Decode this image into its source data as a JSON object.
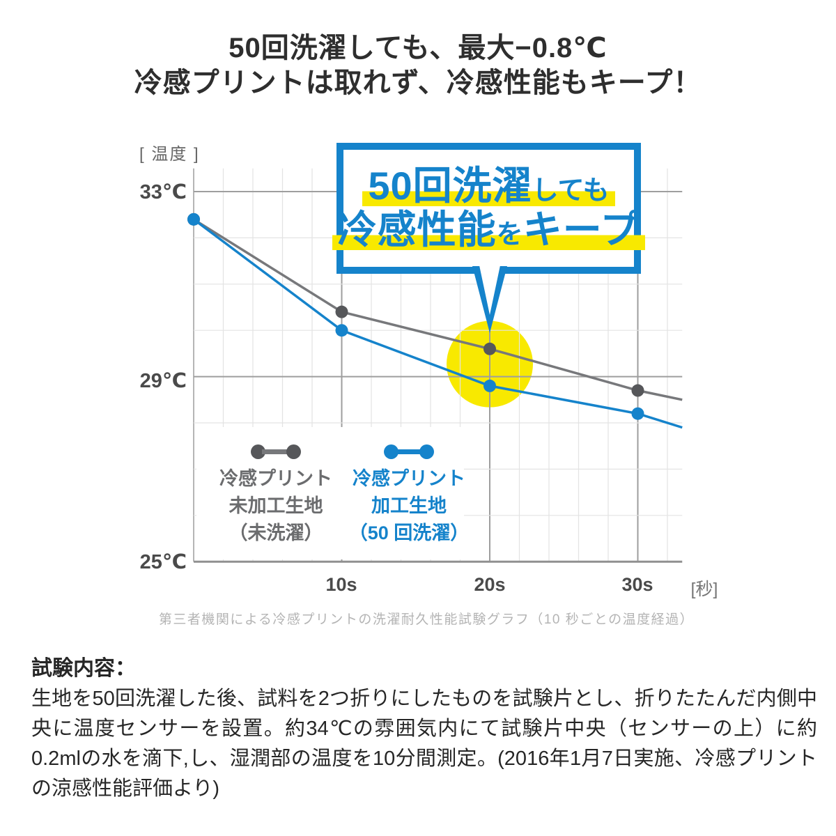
{
  "title": {
    "line1": "50回洗濯しても、最大−0.8℃",
    "line2": "冷感プリントは取れず、冷感性能もキープ！"
  },
  "callout": {
    "line1_big": "50回洗濯",
    "line1_small": "しても",
    "line2_big1": "冷感性能",
    "line2_small": "を",
    "line2_big2": "キープ",
    "border_color": "#1583cb",
    "highlight_color": "#f8e900"
  },
  "chart_data": {
    "type": "line",
    "x_axis_tag": "[秒]",
    "y_axis_tag": "[ 温度 ]",
    "x": [
      0,
      10,
      20,
      30,
      33
    ],
    "markers_x": [
      0,
      10,
      20,
      30
    ],
    "series": [
      {
        "name": "冷感プリント未加工生地（未洗濯）",
        "color": "#77787b",
        "marker_color": "#56575a",
        "values": [
          32.4,
          30.4,
          29.6,
          28.7,
          28.5
        ]
      },
      {
        "name": "冷感プリント加工生地（50回洗濯）",
        "color": "#1583cb",
        "marker_color": "#1583cb",
        "values": [
          32.4,
          30.0,
          28.8,
          28.2,
          27.9
        ]
      }
    ],
    "ylim": [
      25,
      33.5
    ],
    "yticks": [
      {
        "temp": 33,
        "label": "33℃"
      },
      {
        "temp": 29,
        "label": "29℃"
      },
      {
        "temp": 25,
        "label": "25℃"
      }
    ],
    "xticks": [
      {
        "t": 10,
        "label": "10s"
      },
      {
        "t": 20,
        "label": "20s"
      },
      {
        "t": 30,
        "label": "30s"
      }
    ],
    "grid": {
      "minor_color": "#e3e3e3",
      "major_color": "#9e9e9e",
      "axis_color": "#b5b5b5",
      "baseline_color": "#909090"
    },
    "highlight": {
      "x": 20,
      "temp": 29.27,
      "radius": 62,
      "color": "#f8e900"
    },
    "caption": "第三者機関による冷感プリントの洗濯耐久性能試験グラフ（10 秒ごとの温度経過）"
  },
  "legend": [
    {
      "lines": [
        "冷感プリント",
        "未加工生地",
        "（未洗濯）"
      ],
      "text_color": "#6b6c6e",
      "line_color": "#77787b",
      "dot_color": "#56575a"
    },
    {
      "lines": [
        "冷感プリント",
        "加工生地",
        "（50 回洗濯）"
      ],
      "text_color": "#1583cb",
      "line_color": "#1583cb",
      "dot_color": "#1583cb"
    }
  ],
  "test_section": {
    "heading": "試験内容：",
    "body": "生地を50回洗濯した後、試料を2つ折りにしたものを試験片とし、折りたたんだ内側中央に温度センサーを設置。約34℃の雰囲気内にて試験片中央（センサーの上）に約0.2mlの水を滴下,し、湿潤部の温度を10分間測定。(2016年1月7日実施、冷感プリントの涼感性能評価より)"
  }
}
